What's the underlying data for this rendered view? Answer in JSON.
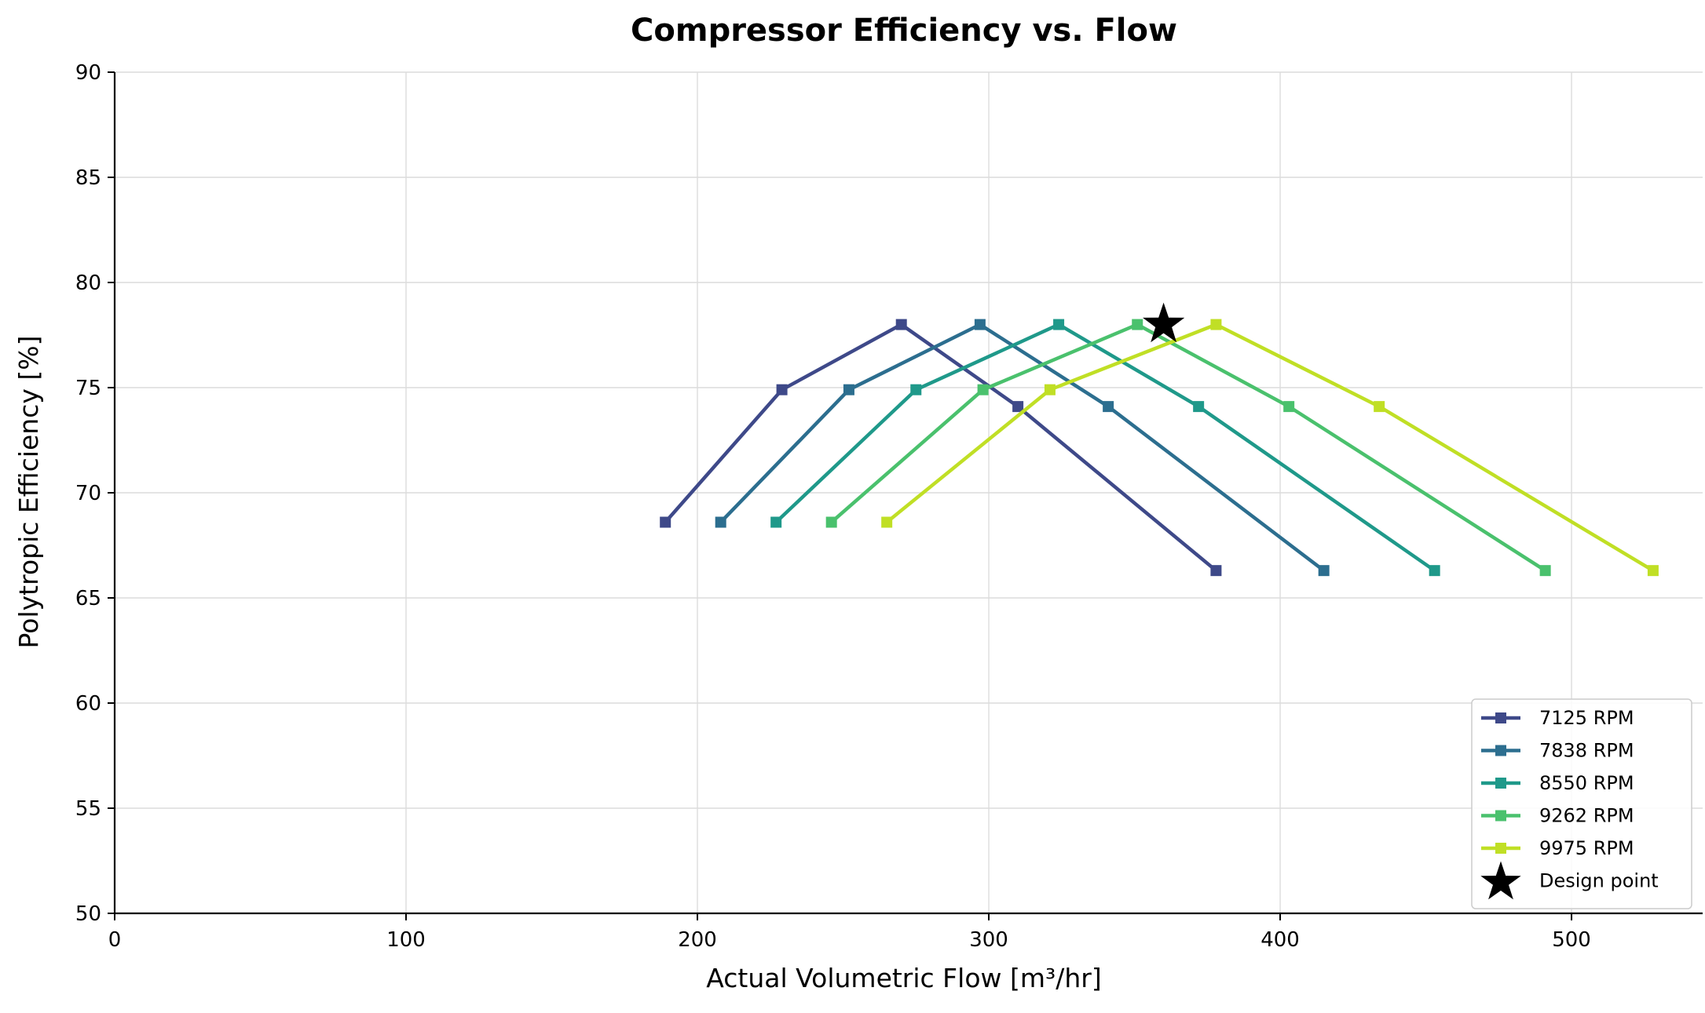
{
  "chart_data": {
    "type": "line",
    "title": "Compressor Efficiency vs. Flow",
    "xlabel": "Actual Volumetric Flow [m³/hr]",
    "ylabel": "Polytropic Efficiency [%]",
    "xlim": [
      0,
      545
    ],
    "ylim": [
      50,
      90
    ],
    "xticks": [
      0,
      100,
      200,
      300,
      400,
      500
    ],
    "yticks": [
      50,
      55,
      60,
      65,
      70,
      75,
      80,
      85,
      90
    ],
    "grid": true,
    "legend_position": "lower-right",
    "series": [
      {
        "name": "7125 RPM",
        "color": "#3e4989",
        "marker": "square",
        "x": [
          189,
          229,
          270,
          310,
          378
        ],
        "y": [
          68.6,
          74.9,
          78.0,
          74.1,
          66.3
        ]
      },
      {
        "name": "7838 RPM",
        "color": "#2c6e8f",
        "marker": "square",
        "x": [
          208,
          252,
          297,
          341,
          415
        ],
        "y": [
          68.6,
          74.9,
          78.0,
          74.1,
          66.3
        ]
      },
      {
        "name": "8550 RPM",
        "color": "#1f998a",
        "marker": "square",
        "x": [
          227,
          275,
          324,
          372,
          453
        ],
        "y": [
          68.6,
          74.9,
          78.0,
          74.1,
          66.3
        ]
      },
      {
        "name": "9262 RPM",
        "color": "#4ac16d",
        "marker": "square",
        "x": [
          246,
          298,
          351,
          403,
          491
        ],
        "y": [
          68.6,
          74.9,
          78.0,
          74.1,
          66.3
        ]
      },
      {
        "name": "9975 RPM",
        "color": "#c0df25",
        "marker": "square",
        "x": [
          265,
          321,
          378,
          434,
          528
        ],
        "y": [
          68.6,
          74.9,
          78.0,
          74.1,
          66.3
        ]
      }
    ],
    "design_point": {
      "name": "Design point",
      "x": 360,
      "y": 78.0,
      "color": "#000000",
      "marker": "star"
    }
  }
}
